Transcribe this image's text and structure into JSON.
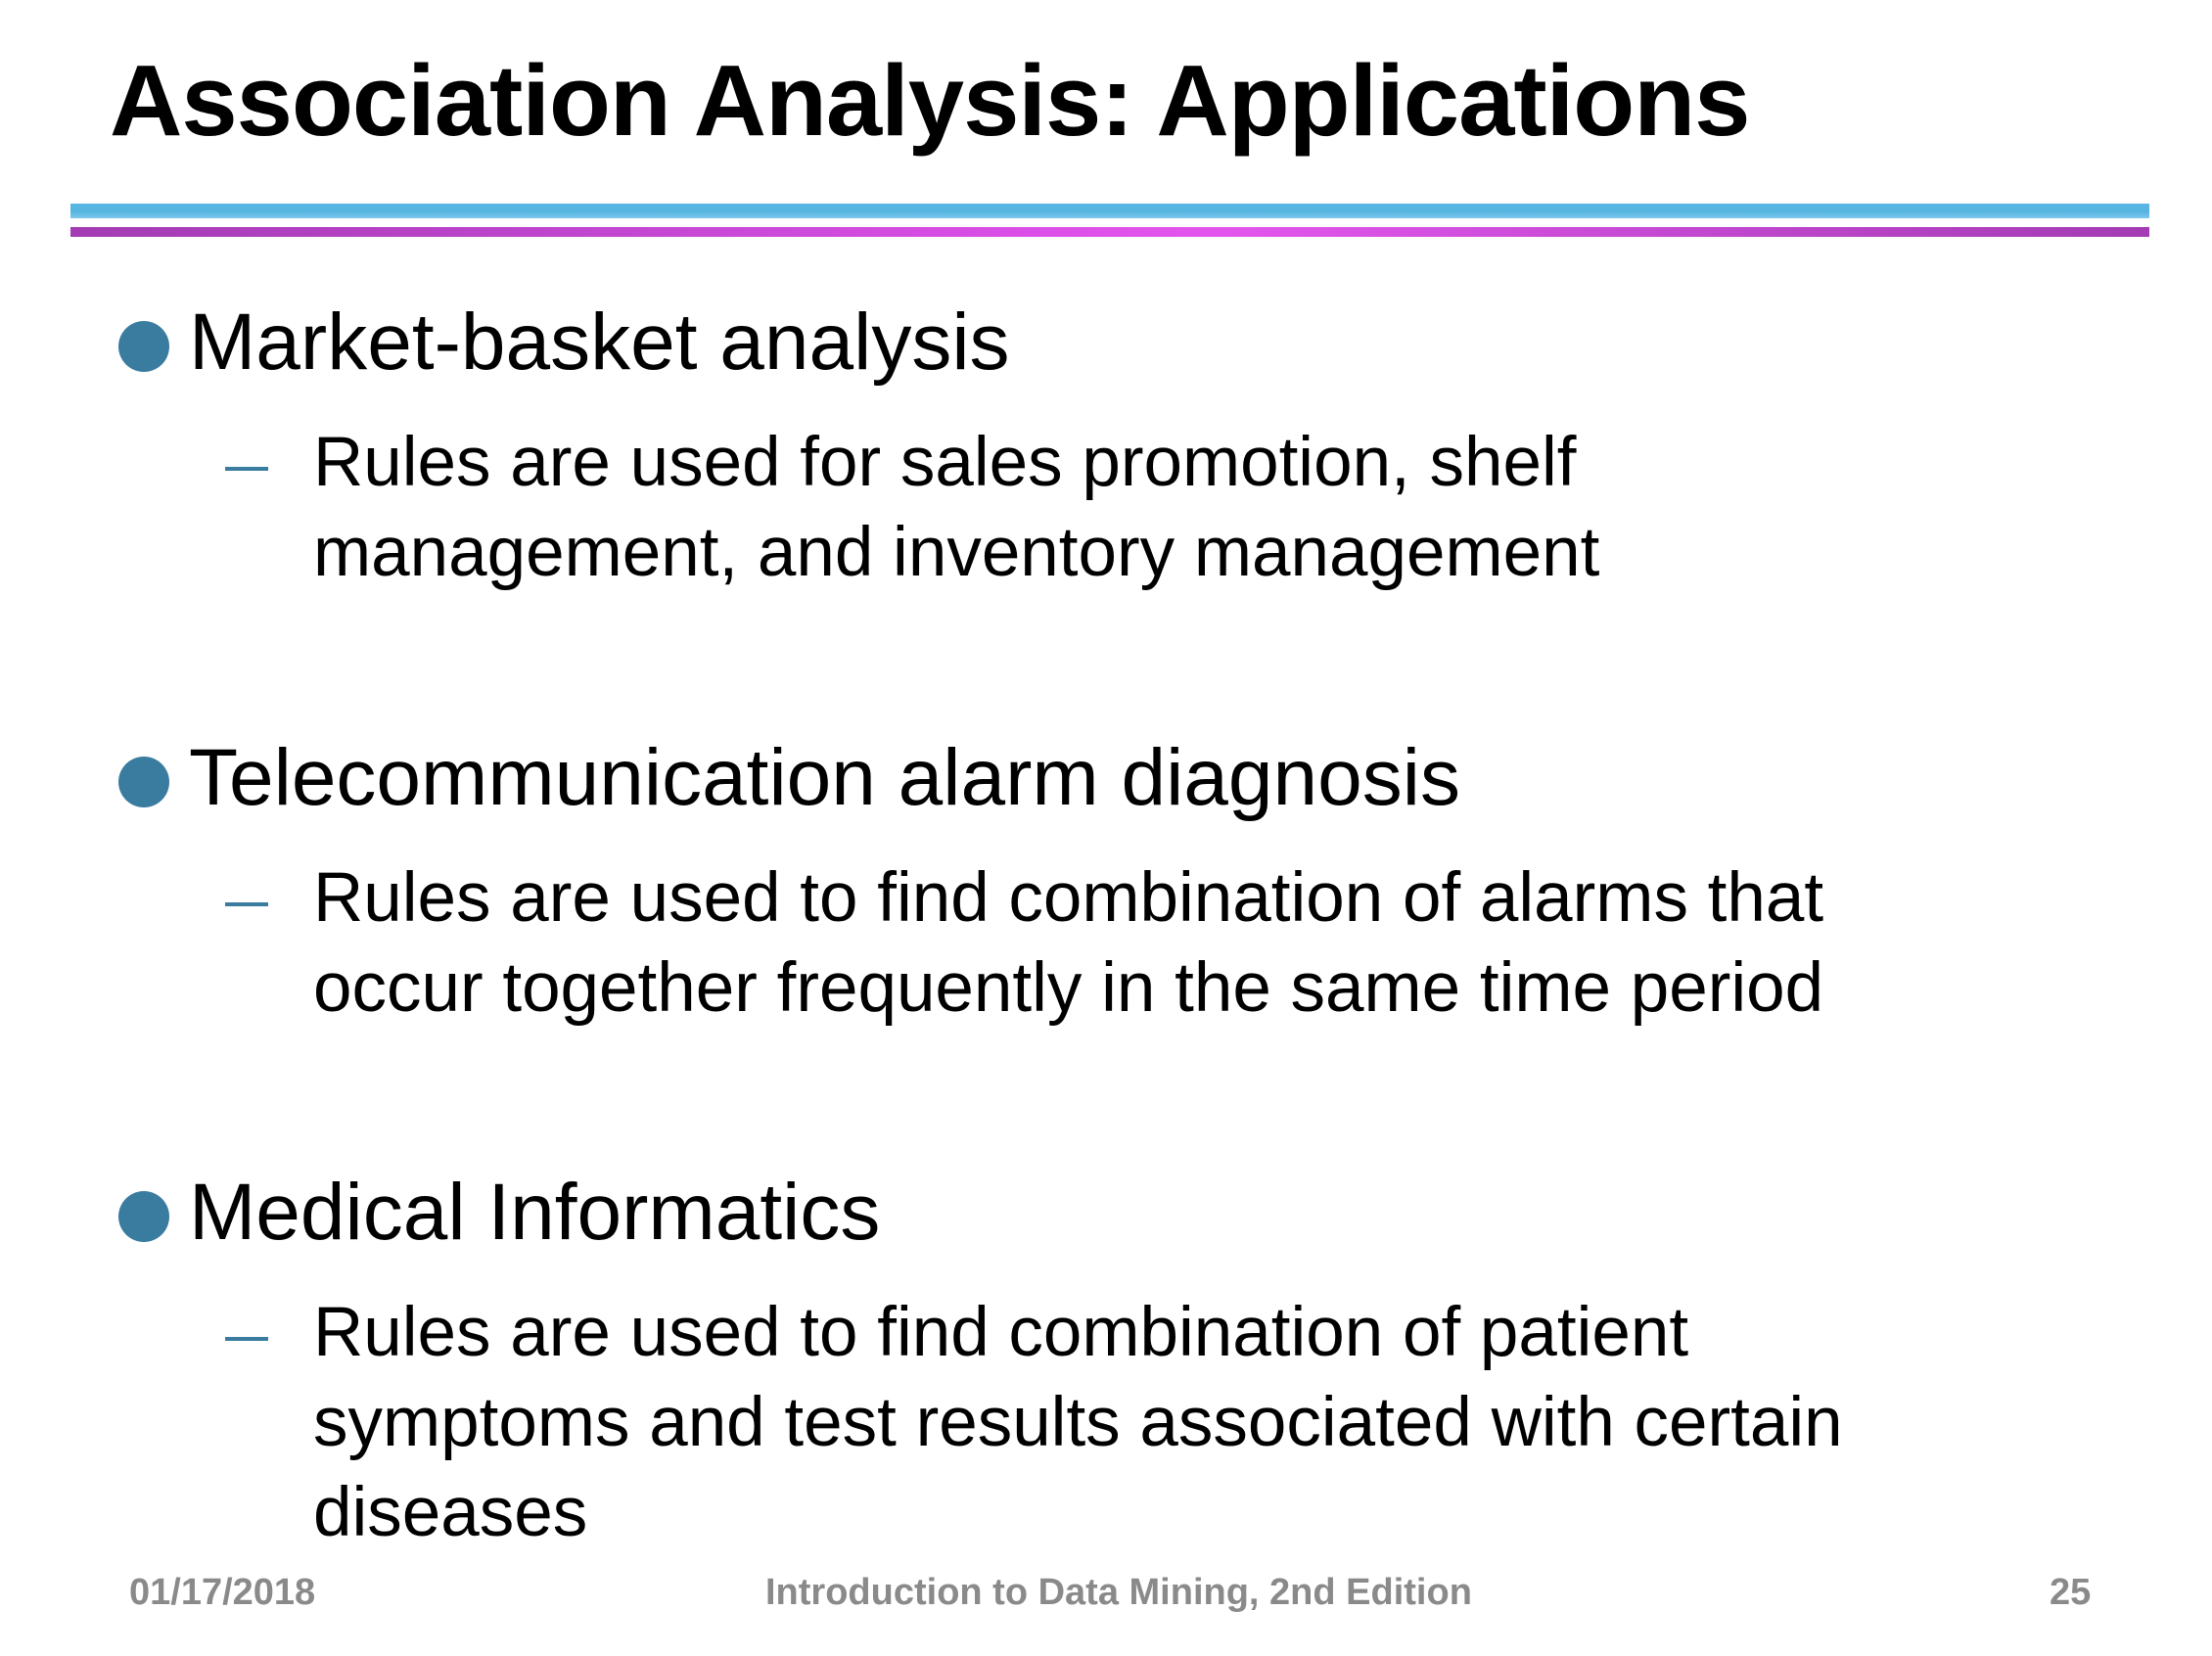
{
  "slide": {
    "title": "Association Analysis: Applications",
    "items": [
      {
        "heading": "Market-basket analysis",
        "detail": "Rules are used for sales promotion, shelf management, and inventory management"
      },
      {
        "heading": "Telecommunication alarm diagnosis",
        "detail": "Rules are used to find combination of alarms that occur together frequently in the same time period"
      },
      {
        "heading": "Medical Informatics",
        "detail": "Rules are used to find combination of patient symptoms and test results associated with certain diseases"
      }
    ],
    "footer": {
      "date": "01/17/2018",
      "center": "Introduction to Data Mining, 2nd Edition",
      "page": "25"
    }
  },
  "colors": {
    "bullet": "#3a7ca0",
    "rule_top": "#56b4e0",
    "rule_bottom": "#d94ee6",
    "footer_text": "#8a8a8a"
  },
  "icons": {
    "bullet": "filled-circle-bullet-icon",
    "sub_bullet": "dash-bullet-icon"
  }
}
